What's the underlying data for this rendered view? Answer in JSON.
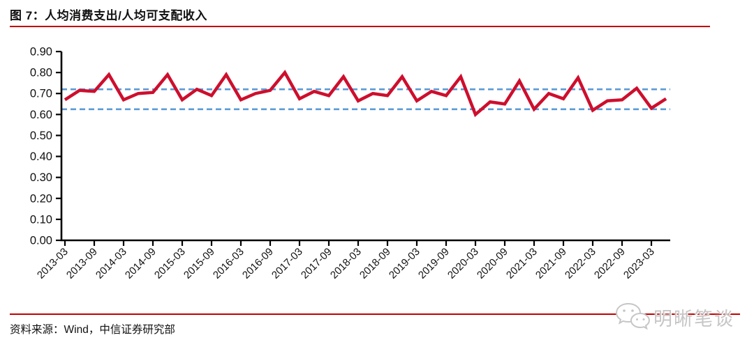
{
  "header": {
    "title": "图 7：人均消费支出/人均可支配收入"
  },
  "footer": {
    "source": "资料来源：Wind，中信证券研究部"
  },
  "watermark": {
    "icon": "wechat-icon",
    "text": "明晰笔谈"
  },
  "colors": {
    "series_line": "#CE0E2D",
    "reference_dashed": "#5B9BD5",
    "rule_red": "#C00000",
    "axis": "#000000",
    "text": "#111111",
    "watermark_gray": "#c6c6c6"
  },
  "chart_data": {
    "type": "line",
    "title": "人均消费支出/人均可支配收入",
    "xlabel": "",
    "ylabel": "",
    "ylim": [
      0,
      0.9
    ],
    "ytick_step": 0.1,
    "y_tick_format": "0.00",
    "grid": false,
    "legend": "none",
    "x": [
      "2013-03",
      "2013-06",
      "2013-09",
      "2013-12",
      "2014-03",
      "2014-06",
      "2014-09",
      "2014-12",
      "2015-03",
      "2015-06",
      "2015-09",
      "2015-12",
      "2016-03",
      "2016-06",
      "2016-09",
      "2016-12",
      "2017-03",
      "2017-06",
      "2017-09",
      "2017-12",
      "2018-03",
      "2018-06",
      "2018-09",
      "2018-12",
      "2019-03",
      "2019-06",
      "2019-09",
      "2019-12",
      "2020-03",
      "2020-06",
      "2020-09",
      "2020-12",
      "2021-03",
      "2021-06",
      "2021-09",
      "2021-12",
      "2022-03",
      "2022-06",
      "2022-09",
      "2022-12",
      "2023-03",
      "2023-06"
    ],
    "values": [
      0.67,
      0.715,
      0.71,
      0.79,
      0.67,
      0.7,
      0.705,
      0.79,
      0.67,
      0.72,
      0.69,
      0.79,
      0.67,
      0.7,
      0.715,
      0.8,
      0.675,
      0.71,
      0.69,
      0.78,
      0.665,
      0.7,
      0.69,
      0.78,
      0.665,
      0.71,
      0.69,
      0.78,
      0.6,
      0.66,
      0.65,
      0.76,
      0.625,
      0.7,
      0.675,
      0.775,
      0.62,
      0.665,
      0.67,
      0.725,
      0.63,
      0.675
    ],
    "x_tick_labels": [
      "2013-03",
      "2013-09",
      "2014-03",
      "2014-09",
      "2015-03",
      "2015-09",
      "2016-03",
      "2016-09",
      "2017-03",
      "2017-09",
      "2018-03",
      "2018-09",
      "2019-03",
      "2019-09",
      "2020-03",
      "2020-09",
      "2021-03",
      "2021-09",
      "2022-03",
      "2022-09",
      "2023-03"
    ],
    "reference_lines": [
      {
        "value": 0.72,
        "style": "dashed"
      },
      {
        "value": 0.625,
        "style": "dashed"
      }
    ]
  }
}
